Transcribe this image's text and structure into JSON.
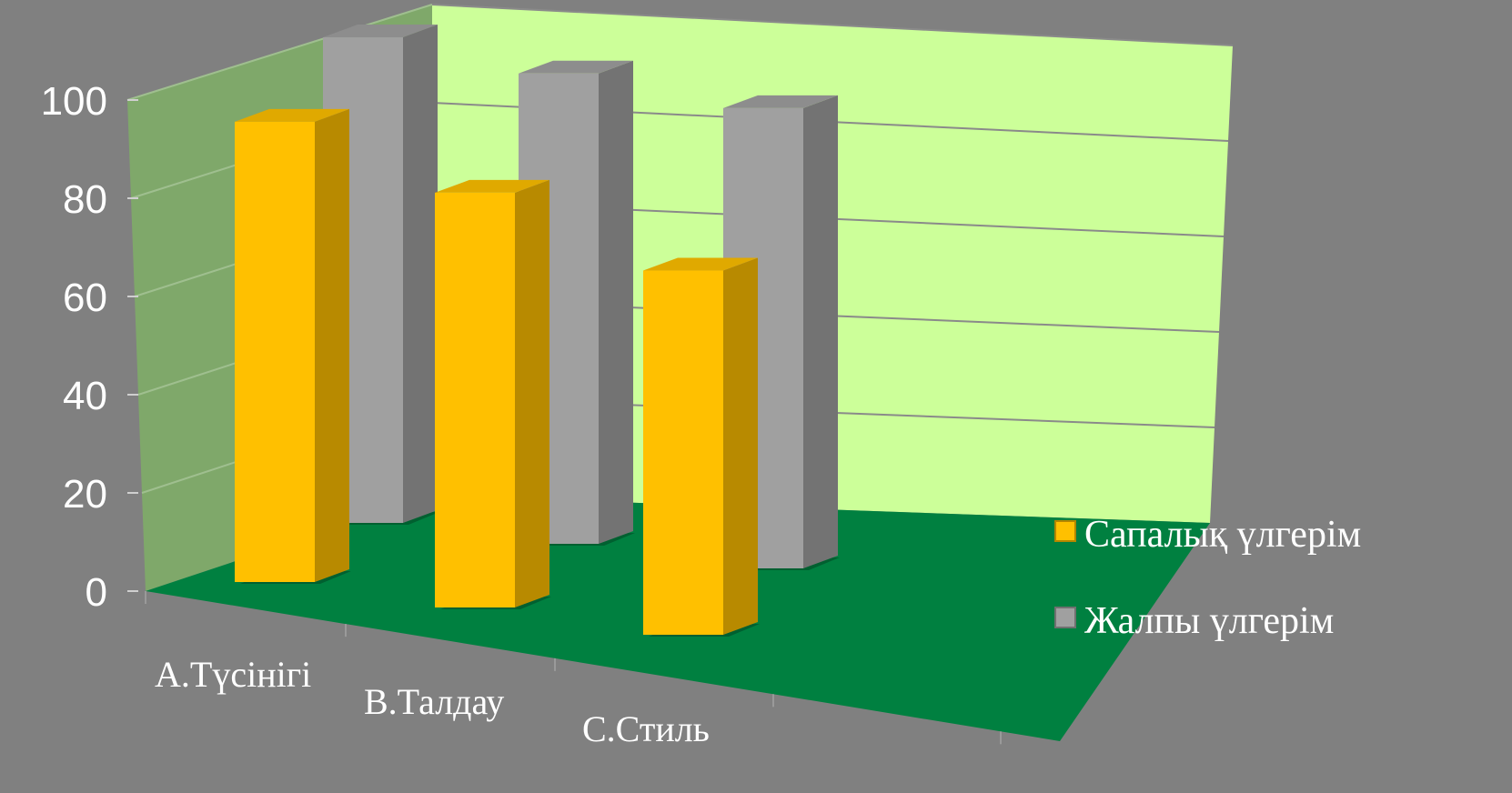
{
  "chart_data": {
    "type": "bar",
    "categories": [
      "A.Түсінігі",
      "B.Талдау",
      "C.Стиль"
    ],
    "series": [
      {
        "name": "Сапалық үлгерім",
        "values": [
          91,
          82,
          72
        ],
        "color": "#FFC000"
      },
      {
        "name": "Жалпы үлгерім",
        "values": [
          96,
          93,
          91
        ],
        "color": "#A0A0A0"
      }
    ],
    "yticks": [
      "0",
      "20",
      "40",
      "60",
      "80",
      "100"
    ],
    "ylim": [
      0,
      100
    ],
    "grid": true,
    "legend": "right",
    "colors": {
      "background": "#808080",
      "back_wall": "#CCFF99",
      "side_wall": "#7FA86A",
      "floor": "#008040"
    }
  }
}
